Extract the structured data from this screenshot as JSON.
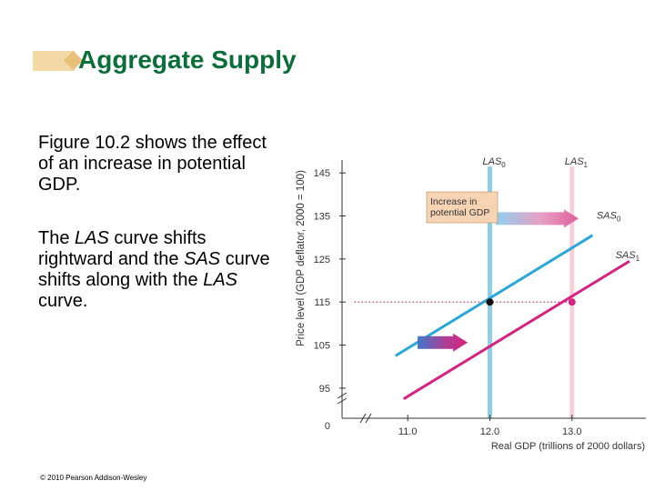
{
  "slide": {
    "title": "Aggregate Supply",
    "para1": "Figure 10.2 shows the effect of an increase in potential GDP.",
    "para2_parts": [
      "The ",
      "LAS",
      " curve shifts rightward and the ",
      "SAS",
      " curve shifts along with the ",
      "LAS",
      " curve."
    ],
    "copyright": "© 2010 Pearson Addison-Wesley"
  },
  "colors": {
    "title": "#0a6e3a",
    "las_old": "#8fcfe6",
    "las_new": "#f7cfd8",
    "sas_old": "#2aa7d8",
    "sas_new": "#d6237f",
    "axis": "#333333",
    "dotted": "#c2185b"
  },
  "chart_data": {
    "type": "line",
    "xlabel": "Real GDP (trillions of 2000 dollars)",
    "ylabel": "Price level (GDP deflator, 2000 = 100)",
    "x_ticks": [
      "11.0",
      "12.0",
      "13.0"
    ],
    "x_tick_values": [
      11.0,
      12.0,
      13.0
    ],
    "y_ticks": [
      "145",
      "135",
      "125",
      "115",
      "105",
      "95"
    ],
    "y_tick_values": [
      145,
      135,
      125,
      115,
      105,
      95
    ],
    "origin_label": "0",
    "xlim": [
      10.2,
      13.9
    ],
    "ylim": [
      88,
      148
    ],
    "axis_break": true,
    "vertical_lines": [
      {
        "name": "LAS",
        "sub": "0",
        "x": 12.0
      },
      {
        "name": "LAS",
        "sub": "1",
        "x": 13.0
      }
    ],
    "series": [
      {
        "name": "SAS",
        "sub": "0",
        "x": [
          10.85,
          13.25
        ],
        "y": [
          102.5,
          130.5
        ]
      },
      {
        "name": "SAS",
        "sub": "1",
        "x": [
          10.95,
          13.7
        ],
        "y": [
          92.5,
          124.5
        ]
      }
    ],
    "points": [
      {
        "x": 12.0,
        "y": 115
      },
      {
        "x": 13.0,
        "y": 115
      }
    ],
    "reference_line": {
      "y": 115,
      "x_from": 10.35,
      "x_to": 13.0
    },
    "annotation": [
      "Increase in",
      "potential GDP"
    ]
  }
}
